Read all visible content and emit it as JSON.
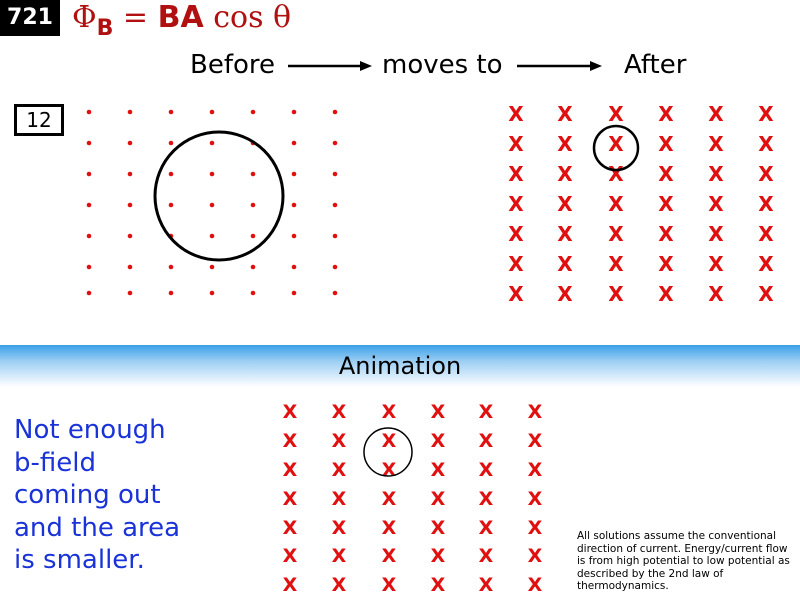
{
  "slide_number": "721",
  "formula": {
    "lhs": "Φ",
    "lhs_sub": "B",
    "eq": " = ",
    "ba": "BA",
    "cos": " cos θ"
  },
  "header": {
    "before": "Before",
    "moves_to": "moves to",
    "after": "After"
  },
  "problem_number": "12",
  "banner": "Animation",
  "explanation": [
    "Not enough",
    "b-field",
    "coming out",
    "and the area",
    "is smaller."
  ],
  "footnote": "All solutions assume the conventional direction of current. Energy/current flow is from high potential to low potential as described by the 2nd law of thermodynamics.",
  "field_symbols": {
    "before": "dot (out of page)",
    "after": "X"
  },
  "colors": {
    "field": "#e01010",
    "formula": "#b01010",
    "explanation": "#1a33d8",
    "banner": "#3aa0e8"
  }
}
